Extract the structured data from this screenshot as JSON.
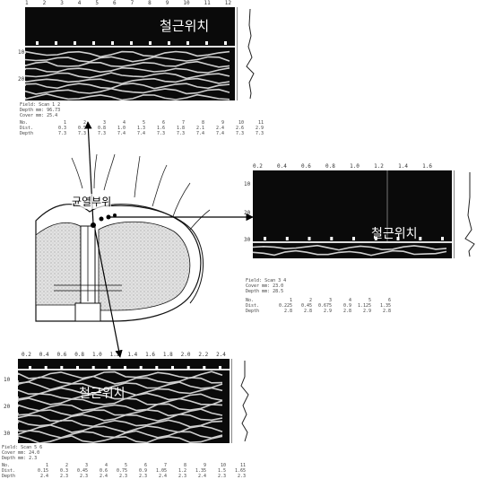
{
  "labels": {
    "rebar_top": "철근위치",
    "rebar_right": "철근위치",
    "rebar_bottom": "철근위치",
    "crack": "균열부위"
  },
  "scan_top": {
    "ruler": [
      "1",
      "2",
      "3",
      "4",
      "5",
      "6",
      "7",
      "8",
      "9",
      "10",
      "11",
      "12"
    ],
    "yticks": [
      "10",
      "20"
    ],
    "meta": [
      "Field: Scan 1 2",
      "Depth mm: 96.73",
      "Cover mm: 25.4"
    ],
    "table": {
      "row_a": [
        "No.",
        "1",
        "2",
        "3",
        "4",
        "5",
        "6",
        "7",
        "8",
        "9",
        "10",
        "11"
      ],
      "row_b": [
        "Dist.",
        "0.3",
        "0.5",
        "0.8",
        "1.0",
        "1.3",
        "1.6",
        "1.8",
        "2.1",
        "2.4",
        "2.6",
        "2.9"
      ],
      "row_c": [
        "Depth",
        "7.3",
        "7.3",
        "7.3",
        "7.4",
        "7.4",
        "7.3",
        "7.3",
        "7.4",
        "7.4",
        "7.3",
        "7.3"
      ]
    }
  },
  "scan_right": {
    "ruler": [
      "0.2",
      "0.4",
      "0.6",
      "0.8",
      "1.0",
      "1.2",
      "1.4",
      "1.6"
    ],
    "yticks": [
      "10",
      "20",
      "30"
    ],
    "meta": [
      "Field: Scan 3 4",
      "Cover mm: 23.0",
      "Depth mm: 28.5"
    ],
    "table": {
      "row_a": [
        "No.",
        "1",
        "2",
        "3",
        "4",
        "5",
        "6"
      ],
      "row_b": [
        "Dist.",
        "0.225",
        "0.45",
        "0.675",
        "0.9",
        "1.125",
        "1.35"
      ],
      "row_c": [
        "Depth",
        "2.8",
        "2.8",
        "2.9",
        "2.8",
        "2.9",
        "2.8"
      ]
    }
  },
  "scan_bottom": {
    "ruler": [
      "0.2",
      "0.4",
      "0.6",
      "0.8",
      "1.0",
      "1.2",
      "1.4",
      "1.6",
      "1.8",
      "2.0",
      "2.2",
      "2.4"
    ],
    "yticks": [
      "10",
      "20",
      "30"
    ],
    "meta": [
      "Field: Scan 5 6",
      "Cover mm: 24.0",
      "Depth mm: 2.3"
    ],
    "table": {
      "row_a": [
        "No.",
        "1",
        "2",
        "3",
        "4",
        "5",
        "6",
        "7",
        "8",
        "9",
        "10",
        "11"
      ],
      "row_b": [
        "Dist.",
        "0.15",
        "0.3",
        "0.45",
        "0.6",
        "0.75",
        "0.9",
        "1.05",
        "1.2",
        "1.35",
        "1.5",
        "1.65"
      ],
      "row_c": [
        "Depth",
        "2.4",
        "2.3",
        "2.3",
        "2.4",
        "2.3",
        "2.3",
        "2.4",
        "2.3",
        "2.4",
        "2.3",
        "2.3"
      ]
    }
  },
  "colors": {
    "scan_bg": "#0a0a0a",
    "band": "#cfcfcf",
    "structure_fill": "#d9d9d9",
    "arrow": "#000000"
  }
}
